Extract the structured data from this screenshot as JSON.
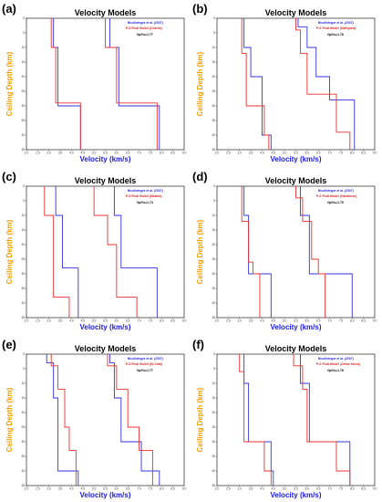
{
  "chart_data": [
    {
      "panel": "(a)",
      "type": "line",
      "title": "Velocity Models",
      "xlabel": "Velocity (km/s)",
      "ylabel": "Ceiling Depth (km)",
      "xlim": [
        2,
        9
      ],
      "ylim": [
        0,
        45
      ],
      "legend": [
        "Nicolintegra et al. (2007)",
        "P-S Final Model (Charsa)",
        "Vp/Vs=1.77"
      ],
      "series": [
        {
          "color": "#3333dd",
          "vp": [
            [
              5.7,
              0
            ],
            [
              5.7,
              10
            ],
            [
              6.1,
              10
            ],
            [
              6.1,
              30
            ],
            [
              7.9,
              30
            ],
            [
              7.9,
              45
            ]
          ],
          "vs": [
            [
              3.2,
              0
            ],
            [
              3.2,
              10
            ],
            [
              3.4,
              10
            ],
            [
              3.4,
              30
            ],
            [
              4.4,
              30
            ],
            [
              4.4,
              45
            ]
          ]
        },
        {
          "color": "#e83030",
          "vp": [
            [
              5.5,
              0
            ],
            [
              5.5,
              10
            ],
            [
              6.0,
              10
            ],
            [
              6.0,
              29
            ],
            [
              7.8,
              29
            ],
            [
              7.8,
              45
            ]
          ],
          "vs": [
            [
              3.1,
              0
            ],
            [
              3.1,
              10
            ],
            [
              3.3,
              10
            ],
            [
              3.3,
              29
            ],
            [
              4.4,
              29
            ],
            [
              4.4,
              45
            ]
          ]
        }
      ]
    },
    {
      "panel": "(b)",
      "type": "line",
      "title": "Velocity Models",
      "xlabel": "Velocity (km/s)",
      "ylabel": "Ceiling Depth (km)",
      "xlim": [
        2,
        9
      ],
      "ylim": [
        0,
        45
      ],
      "legend": [
        "Nicolintegra et al. (2007)",
        "P-S Final Model (Nathyana)",
        "Vp/Vs=1.78"
      ],
      "series": [
        {
          "color": "#3333dd",
          "vp": [
            [
              5.6,
              0
            ],
            [
              5.6,
              3
            ],
            [
              6.0,
              3
            ],
            [
              6.0,
              10
            ],
            [
              6.4,
              10
            ],
            [
              6.4,
              20
            ],
            [
              7.0,
              20
            ],
            [
              7.0,
              28
            ],
            [
              8.1,
              28
            ],
            [
              8.1,
              45
            ]
          ],
          "vs": [
            [
              3.2,
              0
            ],
            [
              3.2,
              10
            ],
            [
              3.5,
              10
            ],
            [
              3.5,
              20
            ],
            [
              4.0,
              20
            ],
            [
              4.0,
              40
            ],
            [
              4.4,
              40
            ],
            [
              4.4,
              45
            ]
          ]
        },
        {
          "color": "#e83030",
          "vp": [
            [
              5.5,
              0
            ],
            [
              5.5,
              4
            ],
            [
              5.7,
              4
            ],
            [
              5.7,
              12
            ],
            [
              6.0,
              12
            ],
            [
              6.0,
              26
            ],
            [
              7.3,
              26
            ],
            [
              7.3,
              39
            ],
            [
              7.9,
              39
            ],
            [
              7.9,
              45
            ]
          ],
          "vs": [
            [
              3.1,
              0
            ],
            [
              3.1,
              12
            ],
            [
              3.3,
              12
            ],
            [
              3.3,
              30
            ],
            [
              4.1,
              30
            ],
            [
              4.1,
              40
            ],
            [
              4.3,
              40
            ],
            [
              4.3,
              45
            ]
          ]
        }
      ]
    },
    {
      "panel": "(c)",
      "type": "line",
      "title": "Velocity Models",
      "xlabel": "Velocity (km/s)",
      "ylabel": "Ceiling Depth (km)",
      "xlim": [
        2,
        9
      ],
      "ylim": [
        0,
        45
      ],
      "legend": [
        "Nicolintegra et al. (2007)",
        "P-S Final Model (Malaka)",
        "Vp/Vs=1.74"
      ],
      "series": [
        {
          "color": "#3333dd",
          "vp": [
            [
              5.9,
              0
            ],
            [
              5.9,
              10
            ],
            [
              6.2,
              10
            ],
            [
              6.2,
              28
            ],
            [
              7.8,
              28
            ],
            [
              7.8,
              45
            ]
          ],
          "vs": [
            [
              3.3,
              0
            ],
            [
              3.3,
              10
            ],
            [
              3.6,
              10
            ],
            [
              3.6,
              28
            ],
            [
              4.3,
              28
            ],
            [
              4.3,
              45
            ]
          ]
        },
        {
          "color": "#e83030",
          "vp": [
            [
              5.0,
              0
            ],
            [
              5.0,
              10
            ],
            [
              5.6,
              10
            ],
            [
              5.6,
              20
            ],
            [
              6.0,
              20
            ],
            [
              6.0,
              38
            ],
            [
              6.9,
              38
            ],
            [
              6.9,
              45
            ]
          ],
          "vs": [
            [
              2.8,
              0
            ],
            [
              2.8,
              10
            ],
            [
              3.2,
              10
            ],
            [
              3.2,
              38
            ],
            [
              3.9,
              38
            ],
            [
              3.9,
              45
            ]
          ]
        }
      ]
    },
    {
      "panel": "(d)",
      "type": "line",
      "title": "Velocity Models",
      "xlabel": "Velocity (km/s)",
      "ylabel": "Ceiling Depth (km)",
      "xlim": [
        2,
        9
      ],
      "ylim": [
        0,
        45
      ],
      "legend": [
        "Nicolintegra et al. (2007)",
        "P-S Final Model (Hanakeon)",
        "Vp/Vs=1.75"
      ],
      "series": [
        {
          "color": "#3333dd",
          "vp": [
            [
              5.7,
              0
            ],
            [
              5.7,
              10
            ],
            [
              6.1,
              10
            ],
            [
              6.1,
              30
            ],
            [
              8.0,
              30
            ],
            [
              8.0,
              45
            ]
          ],
          "vs": [
            [
              3.2,
              0
            ],
            [
              3.2,
              10
            ],
            [
              3.4,
              10
            ],
            [
              3.4,
              30
            ],
            [
              4.4,
              30
            ],
            [
              4.4,
              45
            ]
          ]
        },
        {
          "color": "#e83030",
          "vp": [
            [
              5.5,
              0
            ],
            [
              5.5,
              4
            ],
            [
              5.8,
              4
            ],
            [
              5.8,
              12
            ],
            [
              6.2,
              12
            ],
            [
              6.2,
              25
            ],
            [
              6.5,
              25
            ],
            [
              6.5,
              30
            ],
            [
              6.8,
              30
            ],
            [
              6.8,
              45
            ]
          ],
          "vs": [
            [
              3.1,
              0
            ],
            [
              3.1,
              12
            ],
            [
              3.4,
              12
            ],
            [
              3.4,
              26
            ],
            [
              3.6,
              26
            ],
            [
              3.6,
              30
            ],
            [
              3.9,
              30
            ],
            [
              3.9,
              45
            ]
          ]
        }
      ]
    },
    {
      "panel": "(e)",
      "type": "line",
      "title": "Velocity Models",
      "xlabel": "Velocity (km/s)",
      "ylabel": "Ceiling Depth (km)",
      "xlim": [
        2,
        9
      ],
      "ylim": [
        0,
        45
      ],
      "legend": [
        "Nicolintegra et al. (2007)",
        "P-S Final Model (Ni-Cata)",
        "Vp/Vs=1.77"
      ],
      "series": [
        {
          "color": "#3333dd",
          "vp": [
            [
              5.7,
              0
            ],
            [
              5.7,
              3
            ],
            [
              5.9,
              3
            ],
            [
              5.9,
              15
            ],
            [
              6.2,
              15
            ],
            [
              6.2,
              30
            ],
            [
              7.1,
              30
            ],
            [
              7.1,
              40
            ],
            [
              7.9,
              40
            ],
            [
              7.9,
              45
            ]
          ],
          "vs": [
            [
              2.9,
              0
            ],
            [
              2.9,
              3
            ],
            [
              3.2,
              3
            ],
            [
              3.2,
              15
            ],
            [
              3.4,
              15
            ],
            [
              3.4,
              40
            ],
            [
              4.3,
              40
            ],
            [
              4.3,
              45
            ]
          ]
        },
        {
          "color": "#e83030",
          "vp": [
            [
              5.6,
              0
            ],
            [
              5.6,
              4
            ],
            [
              6.0,
              4
            ],
            [
              6.0,
              12
            ],
            [
              6.5,
              12
            ],
            [
              6.5,
              25
            ],
            [
              7.0,
              25
            ],
            [
              7.0,
              33
            ],
            [
              7.6,
              33
            ],
            [
              7.6,
              45
            ]
          ],
          "vs": [
            [
              3.1,
              0
            ],
            [
              3.1,
              4
            ],
            [
              3.4,
              4
            ],
            [
              3.4,
              12
            ],
            [
              3.7,
              12
            ],
            [
              3.7,
              25
            ],
            [
              3.9,
              25
            ],
            [
              3.9,
              33
            ],
            [
              4.2,
              33
            ],
            [
              4.2,
              45
            ]
          ]
        }
      ]
    },
    {
      "panel": "(f)",
      "type": "line",
      "title": "Velocity Models",
      "xlabel": "Velocity (km/s)",
      "ylabel": "Ceiling Depth (km)",
      "xlim": [
        2,
        9
      ],
      "ylim": [
        0,
        45
      ],
      "legend": [
        "Nicolintegra et al. (2007)",
        "P-S Final Model (Zekra-Yazon)",
        "Vp/Vs=1.78"
      ],
      "series": [
        {
          "color": "#3333dd",
          "vp": [
            [
              5.7,
              0
            ],
            [
              5.7,
              10
            ],
            [
              6.1,
              10
            ],
            [
              6.1,
              30
            ],
            [
              7.9,
              30
            ],
            [
              7.9,
              45
            ]
          ],
          "vs": [
            [
              3.2,
              0
            ],
            [
              3.2,
              10
            ],
            [
              3.4,
              10
            ],
            [
              3.4,
              30
            ],
            [
              4.4,
              30
            ],
            [
              4.4,
              40
            ],
            [
              4.5,
              40
            ],
            [
              4.5,
              45
            ]
          ]
        },
        {
          "color": "#e83030",
          "vp": [
            [
              5.4,
              0
            ],
            [
              5.4,
              4
            ],
            [
              5.8,
              4
            ],
            [
              5.8,
              12
            ],
            [
              6.0,
              12
            ],
            [
              6.0,
              30
            ],
            [
              7.3,
              30
            ],
            [
              7.3,
              40
            ],
            [
              7.9,
              40
            ],
            [
              7.9,
              45
            ]
          ],
          "vs": [
            [
              3.0,
              0
            ],
            [
              3.0,
              6
            ],
            [
              3.2,
              6
            ],
            [
              3.2,
              30
            ],
            [
              4.1,
              30
            ],
            [
              4.1,
              40
            ],
            [
              4.4,
              40
            ],
            [
              4.4,
              45
            ]
          ]
        }
      ]
    }
  ]
}
